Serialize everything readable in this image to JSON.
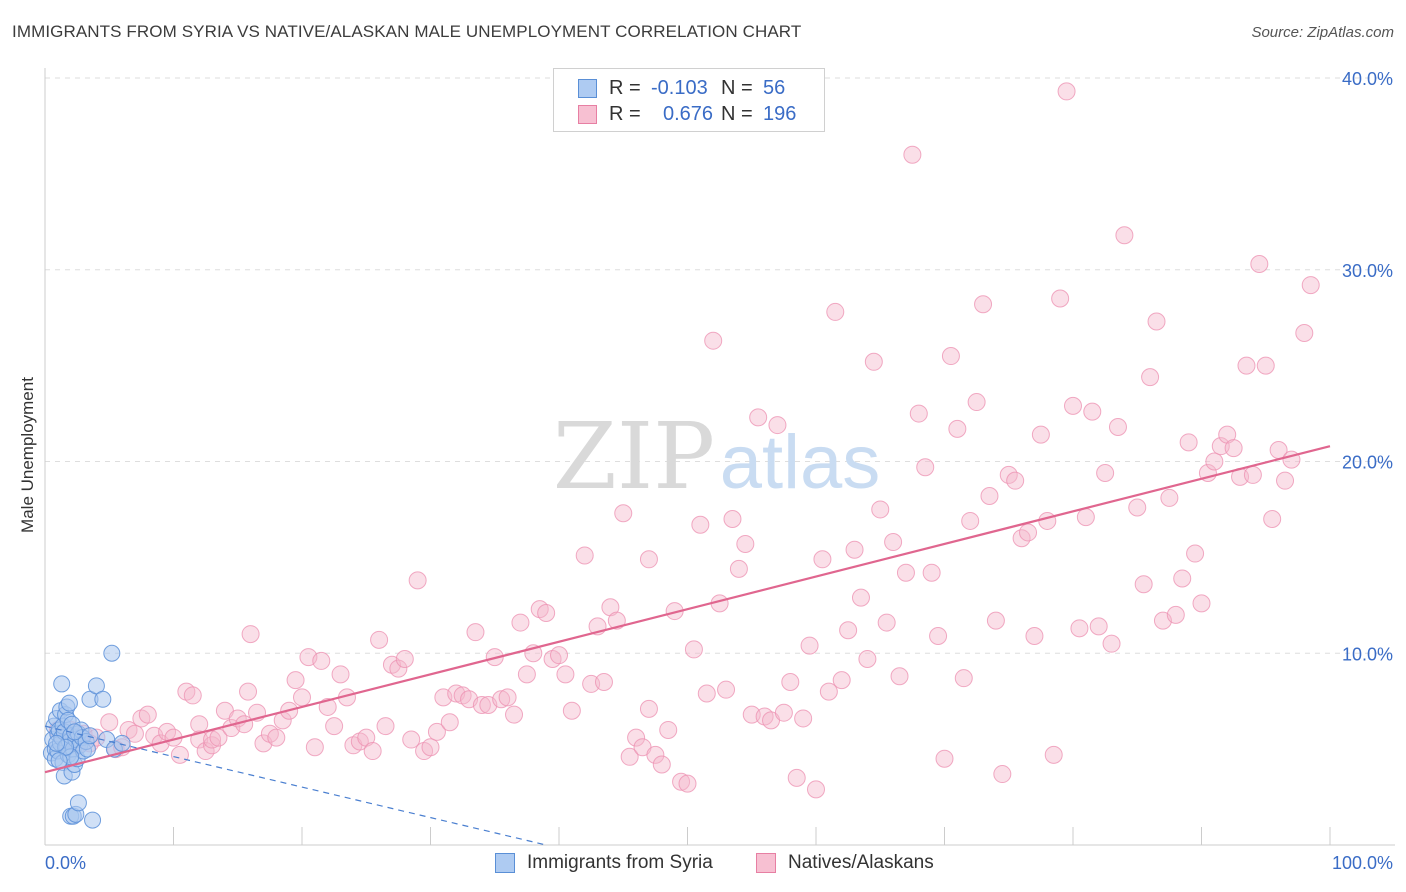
{
  "title": "IMMIGRANTS FROM SYRIA VS NATIVE/ALASKAN MALE UNEMPLOYMENT CORRELATION CHART",
  "source": "Source: ZipAtlas.com",
  "watermark": {
    "zip": "ZIP",
    "atlas": "atlas"
  },
  "legend": {
    "r_label": "R =",
    "n_label": "N =",
    "series": [
      {
        "name": "Immigrants from Syria",
        "r": "-0.103",
        "n": "56",
        "fill": "#aecbf2",
        "stroke": "#5a8fd6"
      },
      {
        "name": "Natives/Alaskans",
        "r": "0.676",
        "n": "196",
        "fill": "#f7c0d2",
        "stroke": "#e77fa3"
      }
    ]
  },
  "colors": {
    "blue_point": "#5b8fd8",
    "pink_point": "#ec8fb0",
    "pink_line": "#e0668f",
    "blue_line": "#4a7fd0",
    "tick_text": "#3a6cc6"
  },
  "chart_data": {
    "type": "scatter",
    "title": "IMMIGRANTS FROM SYRIA VS NATIVE/ALASKAN MALE UNEMPLOYMENT CORRELATION CHART",
    "xlabel": "",
    "ylabel": "Male Unemployment",
    "xlim": [
      0,
      100
    ],
    "ylim": [
      0,
      40
    ],
    "x_tick_labels": [
      "0.0%",
      "100.0%"
    ],
    "y_ticks": [
      10,
      20,
      30,
      40
    ],
    "y_tick_labels": [
      "10.0%",
      "20.0%",
      "30.0%",
      "40.0%"
    ],
    "grid": true,
    "series": [
      {
        "name": "Immigrants from Syria",
        "trend": {
          "x": [
            0,
            39
          ],
          "y": [
            6.2,
            0
          ]
        },
        "points": [
          [
            0.5,
            4.8
          ],
          [
            0.6,
            5.5
          ],
          [
            0.7,
            6.2
          ],
          [
            0.8,
            5.0
          ],
          [
            0.8,
            4.5
          ],
          [
            0.9,
            6.6
          ],
          [
            1.0,
            5.8
          ],
          [
            1.0,
            4.9
          ],
          [
            1.1,
            6.0
          ],
          [
            1.2,
            7.0
          ],
          [
            1.2,
            5.3
          ],
          [
            1.3,
            5.6
          ],
          [
            1.3,
            8.4
          ],
          [
            1.4,
            4.3
          ],
          [
            1.4,
            6.2
          ],
          [
            1.5,
            3.6
          ],
          [
            1.5,
            5.9
          ],
          [
            1.6,
            6.8
          ],
          [
            1.7,
            7.2
          ],
          [
            1.7,
            5.1
          ],
          [
            1.8,
            6.5
          ],
          [
            1.8,
            4.7
          ],
          [
            1.9,
            5.4
          ],
          [
            1.9,
            7.4
          ],
          [
            2.0,
            5.7
          ],
          [
            2.0,
            1.5
          ],
          [
            2.1,
            3.8
          ],
          [
            2.1,
            6.3
          ],
          [
            2.2,
            5.0
          ],
          [
            2.2,
            1.5
          ],
          [
            2.3,
            4.2
          ],
          [
            2.4,
            5.5
          ],
          [
            2.4,
            1.6
          ],
          [
            2.5,
            4.5
          ],
          [
            2.6,
            5.8
          ],
          [
            2.6,
            2.2
          ],
          [
            2.7,
            5.2
          ],
          [
            2.8,
            6.0
          ],
          [
            2.9,
            5.6
          ],
          [
            3.0,
            4.9
          ],
          [
            3.2,
            5.4
          ],
          [
            3.3,
            5.0
          ],
          [
            3.5,
            5.7
          ],
          [
            3.5,
            7.6
          ],
          [
            3.7,
            1.3
          ],
          [
            4.0,
            8.3
          ],
          [
            4.5,
            7.6
          ],
          [
            4.8,
            5.5
          ],
          [
            5.2,
            10.0
          ],
          [
            2.0,
            4.6
          ],
          [
            2.3,
            5.9
          ],
          [
            1.6,
            5.1
          ],
          [
            0.9,
            5.3
          ],
          [
            5.4,
            5.0
          ],
          [
            6.0,
            5.3
          ],
          [
            1.1,
            4.4
          ]
        ]
      },
      {
        "name": "Natives/Alaskans",
        "trend": {
          "x": [
            0,
            100
          ],
          "y": [
            3.8,
            20.8
          ]
        },
        "points": [
          [
            1.0,
            6.0
          ],
          [
            1.5,
            5.5
          ],
          [
            2.0,
            6.0
          ],
          [
            2.5,
            5.2
          ],
          [
            3.0,
            5.8
          ],
          [
            3.5,
            5.3
          ],
          [
            4.0,
            5.6
          ],
          [
            5.0,
            6.4
          ],
          [
            5.5,
            5.0
          ],
          [
            6.0,
            5.1
          ],
          [
            6.5,
            6.0
          ],
          [
            7.0,
            5.8
          ],
          [
            7.5,
            6.6
          ],
          [
            8.0,
            6.8
          ],
          [
            8.5,
            5.7
          ],
          [
            9.0,
            5.3
          ],
          [
            9.5,
            5.9
          ],
          [
            10.0,
            5.6
          ],
          [
            10.5,
            4.7
          ],
          [
            11.0,
            8.0
          ],
          [
            11.5,
            7.8
          ],
          [
            12.0,
            6.3
          ],
          [
            12.0,
            5.5
          ],
          [
            12.5,
            4.9
          ],
          [
            13.0,
            5.2
          ],
          [
            13.0,
            5.5
          ],
          [
            13.5,
            5.6
          ],
          [
            14.0,
            7.0
          ],
          [
            14.5,
            6.1
          ],
          [
            15.0,
            6.6
          ],
          [
            15.5,
            6.3
          ],
          [
            15.8,
            8.0
          ],
          [
            16.0,
            11.0
          ],
          [
            16.5,
            6.9
          ],
          [
            17.0,
            5.3
          ],
          [
            17.5,
            5.8
          ],
          [
            18.0,
            5.6
          ],
          [
            18.5,
            6.5
          ],
          [
            19.0,
            7.0
          ],
          [
            19.5,
            8.6
          ],
          [
            20.0,
            7.7
          ],
          [
            20.5,
            9.8
          ],
          [
            21.0,
            5.1
          ],
          [
            21.5,
            9.6
          ],
          [
            22.0,
            7.2
          ],
          [
            22.5,
            6.2
          ],
          [
            23.0,
            8.9
          ],
          [
            23.5,
            7.7
          ],
          [
            24.0,
            5.2
          ],
          [
            24.5,
            5.4
          ],
          [
            25.0,
            5.6
          ],
          [
            25.5,
            4.9
          ],
          [
            26.0,
            10.7
          ],
          [
            26.5,
            6.2
          ],
          [
            27.0,
            9.4
          ],
          [
            27.5,
            9.2
          ],
          [
            28.0,
            9.7
          ],
          [
            28.5,
            5.5
          ],
          [
            29.0,
            13.8
          ],
          [
            29.5,
            4.9
          ],
          [
            30.0,
            5.1
          ],
          [
            30.5,
            5.9
          ],
          [
            31.0,
            7.7
          ],
          [
            31.5,
            6.4
          ],
          [
            32.0,
            7.9
          ],
          [
            32.5,
            7.8
          ],
          [
            33.0,
            7.6
          ],
          [
            33.5,
            11.1
          ],
          [
            34.0,
            7.3
          ],
          [
            34.5,
            7.3
          ],
          [
            35.0,
            9.8
          ],
          [
            35.5,
            7.6
          ],
          [
            36.0,
            7.7
          ],
          [
            36.5,
            6.8
          ],
          [
            37.0,
            11.6
          ],
          [
            37.5,
            8.9
          ],
          [
            38.0,
            10.0
          ],
          [
            38.5,
            12.3
          ],
          [
            39.0,
            12.1
          ],
          [
            39.5,
            9.7
          ],
          [
            40.0,
            9.9
          ],
          [
            40.5,
            8.9
          ],
          [
            41.0,
            7.0
          ],
          [
            42.0,
            15.1
          ],
          [
            42.5,
            8.4
          ],
          [
            43.0,
            11.4
          ],
          [
            43.5,
            8.5
          ],
          [
            44.0,
            12.4
          ],
          [
            44.5,
            11.7
          ],
          [
            45.0,
            17.3
          ],
          [
            45.5,
            4.6
          ],
          [
            46.0,
            5.6
          ],
          [
            46.5,
            5.1
          ],
          [
            47.0,
            14.9
          ],
          [
            47.0,
            7.1
          ],
          [
            47.5,
            4.7
          ],
          [
            48.0,
            4.2
          ],
          [
            48.5,
            6.0
          ],
          [
            49.0,
            12.2
          ],
          [
            49.5,
            3.3
          ],
          [
            50.0,
            3.2
          ],
          [
            50.5,
            10.2
          ],
          [
            51.0,
            16.7
          ],
          [
            51.5,
            7.9
          ],
          [
            52.0,
            26.3
          ],
          [
            52.5,
            12.6
          ],
          [
            53.0,
            8.1
          ],
          [
            53.5,
            17.0
          ],
          [
            54.0,
            14.4
          ],
          [
            54.5,
            15.7
          ],
          [
            55.0,
            6.8
          ],
          [
            55.5,
            22.3
          ],
          [
            56.0,
            6.7
          ],
          [
            56.5,
            6.5
          ],
          [
            57.0,
            21.9
          ],
          [
            57.5,
            6.9
          ],
          [
            58.0,
            8.5
          ],
          [
            58.5,
            3.5
          ],
          [
            59.0,
            6.6
          ],
          [
            59.5,
            10.4
          ],
          [
            60.0,
            2.9
          ],
          [
            60.5,
            14.9
          ],
          [
            61.0,
            8.0
          ],
          [
            61.5,
            27.8
          ],
          [
            62.0,
            8.6
          ],
          [
            62.5,
            11.2
          ],
          [
            63.0,
            15.4
          ],
          [
            63.5,
            12.9
          ],
          [
            64.0,
            9.7
          ],
          [
            64.5,
            25.2
          ],
          [
            65.0,
            17.5
          ],
          [
            65.5,
            11.6
          ],
          [
            66.0,
            15.8
          ],
          [
            66.5,
            8.8
          ],
          [
            67.0,
            14.2
          ],
          [
            67.5,
            36.0
          ],
          [
            68.0,
            22.5
          ],
          [
            68.5,
            19.7
          ],
          [
            69.0,
            14.2
          ],
          [
            69.5,
            10.9
          ],
          [
            70.0,
            4.5
          ],
          [
            70.5,
            25.5
          ],
          [
            71.0,
            21.7
          ],
          [
            71.5,
            8.7
          ],
          [
            72.0,
            16.9
          ],
          [
            72.5,
            23.1
          ],
          [
            73.0,
            28.2
          ],
          [
            73.5,
            18.2
          ],
          [
            74.0,
            11.7
          ],
          [
            74.5,
            3.7
          ],
          [
            75.0,
            19.3
          ],
          [
            75.5,
            19.0
          ],
          [
            76.0,
            16.0
          ],
          [
            76.5,
            16.3
          ],
          [
            77.0,
            10.9
          ],
          [
            77.5,
            21.4
          ],
          [
            78.0,
            16.9
          ],
          [
            78.5,
            4.7
          ],
          [
            79.0,
            28.5
          ],
          [
            79.5,
            39.3
          ],
          [
            80.0,
            22.9
          ],
          [
            80.5,
            11.3
          ],
          [
            81.0,
            17.1
          ],
          [
            81.5,
            22.6
          ],
          [
            82.0,
            11.4
          ],
          [
            82.5,
            19.4
          ],
          [
            83.0,
            10.5
          ],
          [
            83.5,
            21.8
          ],
          [
            84.0,
            31.8
          ],
          [
            85.0,
            17.6
          ],
          [
            85.5,
            13.6
          ],
          [
            86.0,
            24.4
          ],
          [
            86.5,
            27.3
          ],
          [
            87.0,
            11.7
          ],
          [
            87.5,
            18.1
          ],
          [
            88.0,
            12.0
          ],
          [
            88.5,
            13.9
          ],
          [
            89.0,
            21.0
          ],
          [
            89.5,
            15.2
          ],
          [
            90.0,
            12.6
          ],
          [
            90.5,
            19.4
          ],
          [
            91.0,
            20.0
          ],
          [
            91.5,
            20.8
          ],
          [
            92.0,
            21.4
          ],
          [
            92.5,
            20.7
          ],
          [
            93.0,
            19.2
          ],
          [
            93.5,
            25.0
          ],
          [
            94.0,
            19.3
          ],
          [
            94.5,
            30.3
          ],
          [
            95.0,
            25.0
          ],
          [
            95.5,
            17.0
          ],
          [
            96.0,
            20.6
          ],
          [
            96.5,
            19.0
          ],
          [
            97.0,
            20.1
          ],
          [
            98.0,
            26.7
          ],
          [
            98.5,
            29.2
          ]
        ]
      }
    ]
  }
}
